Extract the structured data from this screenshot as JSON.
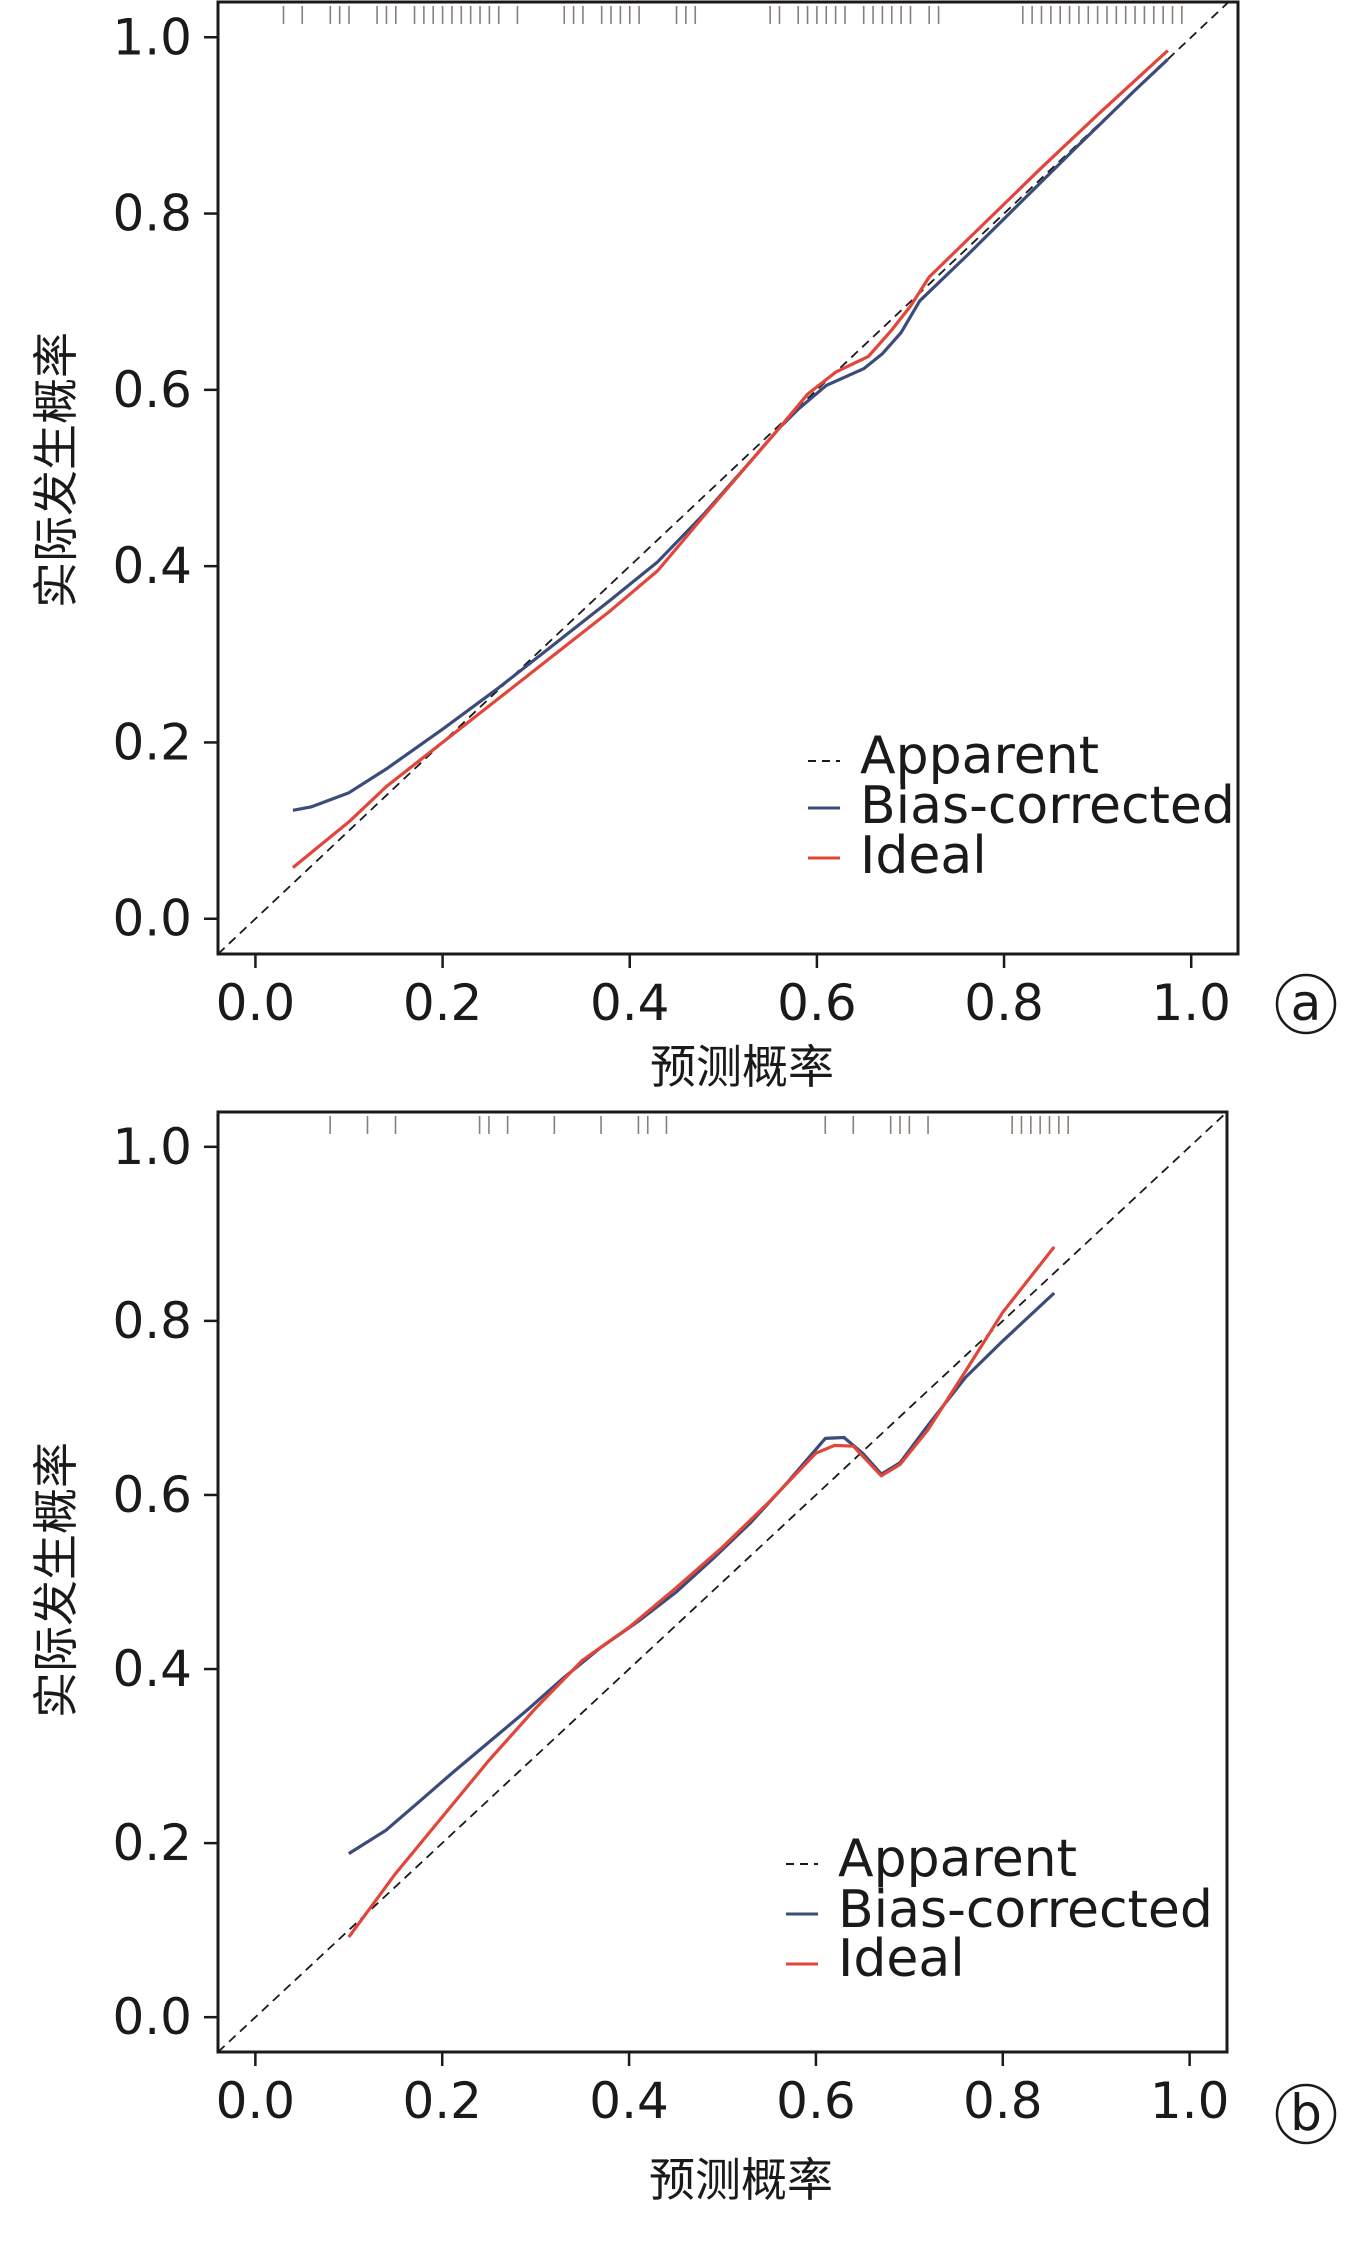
{
  "colors": {
    "apparent": "#1a1a1a",
    "bias_corrected": "#3b4c7a",
    "ideal": "#e2463a",
    "rug": "#8a7f78",
    "frame": "#1a1a1a"
  },
  "chart_data": [
    {
      "panel": "a",
      "type": "line",
      "xlabel": "预测概率",
      "ylabel": "实际发生概率",
      "xlim": [
        -0.04,
        1.05
      ],
      "ylim": [
        -0.04,
        1.04
      ],
      "xticks": [
        "0.0",
        "0.2",
        "0.4",
        "0.6",
        "0.8",
        "1.0"
      ],
      "yticks": [
        "0.0",
        "0.2",
        "0.4",
        "0.6",
        "0.8",
        "1.0"
      ],
      "grid": false,
      "legend_position": "lower-right",
      "legend": [
        "Apparent",
        "Bias-corrected",
        "Ideal"
      ],
      "series": [
        {
          "name": "Apparent",
          "style": "dashed",
          "x": [
            -0.04,
            1.04
          ],
          "y": [
            -0.04,
            1.04
          ]
        },
        {
          "name": "Bias-corrected",
          "style": "solid",
          "x": [
            0.04,
            0.06,
            0.1,
            0.14,
            0.2,
            0.26,
            0.32,
            0.38,
            0.43,
            0.48,
            0.53,
            0.56,
            0.58,
            0.61,
            0.65,
            0.67,
            0.69,
            0.71,
            0.76,
            0.82,
            0.88,
            0.94,
            0.975
          ],
          "y": [
            0.123,
            0.127,
            0.143,
            0.17,
            0.215,
            0.262,
            0.312,
            0.362,
            0.405,
            0.46,
            0.52,
            0.557,
            0.578,
            0.605,
            0.624,
            0.641,
            0.665,
            0.701,
            0.752,
            0.815,
            0.878,
            0.94,
            0.975
          ]
        },
        {
          "name": "Ideal",
          "style": "solid",
          "x": [
            0.04,
            0.1,
            0.14,
            0.2,
            0.26,
            0.32,
            0.38,
            0.43,
            0.48,
            0.53,
            0.56,
            0.59,
            0.62,
            0.655,
            0.68,
            0.7,
            0.72,
            0.78,
            0.84,
            0.9,
            0.975
          ],
          "y": [
            0.058,
            0.11,
            0.15,
            0.2,
            0.25,
            0.3,
            0.35,
            0.395,
            0.458,
            0.52,
            0.557,
            0.595,
            0.62,
            0.638,
            0.668,
            0.695,
            0.728,
            0.79,
            0.852,
            0.912,
            0.985
          ]
        }
      ],
      "rug": [
        0.03,
        0.05,
        0.08,
        0.09,
        0.1,
        0.13,
        0.14,
        0.15,
        0.17,
        0.18,
        0.19,
        0.2,
        0.21,
        0.22,
        0.23,
        0.24,
        0.25,
        0.26,
        0.28,
        0.33,
        0.34,
        0.35,
        0.37,
        0.38,
        0.39,
        0.4,
        0.41,
        0.45,
        0.46,
        0.47,
        0.55,
        0.56,
        0.58,
        0.59,
        0.6,
        0.61,
        0.62,
        0.63,
        0.65,
        0.66,
        0.67,
        0.68,
        0.69,
        0.7,
        0.72,
        0.73,
        0.82,
        0.83,
        0.84,
        0.85,
        0.86,
        0.87,
        0.88,
        0.89,
        0.9,
        0.91,
        0.92,
        0.93,
        0.94,
        0.95,
        0.96,
        0.97,
        0.98,
        0.99
      ]
    },
    {
      "panel": "b",
      "type": "line",
      "xlabel": "预测概率",
      "ylabel": "实际发生概率",
      "xlim": [
        -0.04,
        1.04
      ],
      "ylim": [
        -0.04,
        1.04
      ],
      "xticks": [
        "0.0",
        "0.2",
        "0.4",
        "0.6",
        "0.8",
        "1.0"
      ],
      "yticks": [
        "0.0",
        "0.2",
        "0.4",
        "0.6",
        "0.8",
        "1.0"
      ],
      "grid": false,
      "legend_position": "lower-right",
      "legend": [
        "Apparent",
        "Bias-corrected",
        "Ideal"
      ],
      "series": [
        {
          "name": "Apparent",
          "style": "dashed",
          "x": [
            -0.04,
            1.04
          ],
          "y": [
            -0.04,
            1.04
          ]
        },
        {
          "name": "Bias-corrected",
          "style": "solid",
          "x": [
            0.1,
            0.14,
            0.18,
            0.21,
            0.25,
            0.29,
            0.33,
            0.37,
            0.41,
            0.45,
            0.49,
            0.53,
            0.57,
            0.61,
            0.63,
            0.65,
            0.67,
            0.69,
            0.72,
            0.76,
            0.8,
            0.855
          ],
          "y": [
            0.188,
            0.215,
            0.252,
            0.28,
            0.316,
            0.352,
            0.39,
            0.425,
            0.455,
            0.488,
            0.527,
            0.568,
            0.615,
            0.665,
            0.666,
            0.648,
            0.624,
            0.637,
            0.68,
            0.735,
            0.777,
            0.832
          ]
        },
        {
          "name": "Ideal",
          "style": "solid",
          "x": [
            0.1,
            0.15,
            0.2,
            0.25,
            0.3,
            0.35,
            0.4,
            0.45,
            0.5,
            0.55,
            0.6,
            0.62,
            0.64,
            0.67,
            0.69,
            0.72,
            0.76,
            0.8,
            0.855
          ],
          "y": [
            0.092,
            0.165,
            0.23,
            0.295,
            0.355,
            0.41,
            0.448,
            0.493,
            0.54,
            0.592,
            0.648,
            0.657,
            0.656,
            0.622,
            0.635,
            0.675,
            0.742,
            0.81,
            0.885
          ]
        }
      ],
      "rug": [
        0.08,
        0.12,
        0.15,
        0.24,
        0.25,
        0.27,
        0.32,
        0.37,
        0.41,
        0.42,
        0.44,
        0.61,
        0.64,
        0.68,
        0.69,
        0.7,
        0.72,
        0.81,
        0.82,
        0.83,
        0.84,
        0.85,
        0.86,
        0.87
      ]
    }
  ],
  "panels": [
    {
      "tag": "a",
      "xlabel": "预测概率",
      "ylabel": "实际发生概率",
      "legend": {
        "apparent": "Apparent",
        "bias": "Bias-corrected",
        "ideal": "Ideal"
      }
    },
    {
      "tag": "b",
      "xlabel": "预测概率",
      "ylabel": "实际发生概率",
      "legend": {
        "apparent": "Apparent",
        "bias": "Bias-corrected",
        "ideal": "Ideal"
      }
    }
  ]
}
